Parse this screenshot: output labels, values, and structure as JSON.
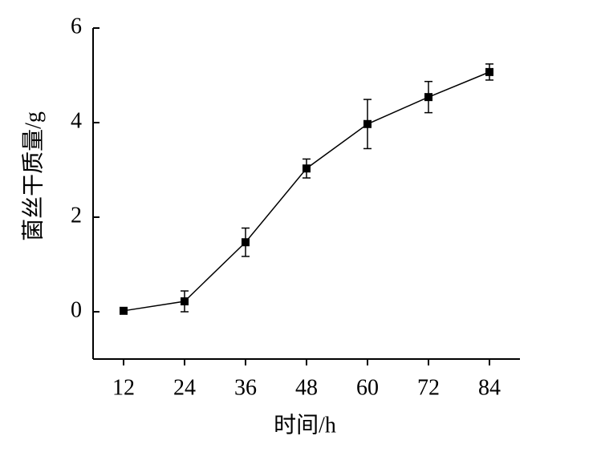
{
  "chart_data": {
    "type": "line",
    "x_label": "时间/h",
    "y_label": "菌丝干质量/g",
    "x": [
      12,
      24,
      36,
      48,
      60,
      72,
      84
    ],
    "series": [
      {
        "color": "#000000",
        "values": [
          0.02,
          0.22,
          1.47,
          3.03,
          3.97,
          4.54,
          5.07
        ],
        "errors": [
          0,
          0.22,
          0.3,
          0.2,
          0.52,
          0.33,
          0.17
        ]
      }
    ],
    "xlim": [
      6,
      90
    ],
    "xticks": [
      12,
      24,
      36,
      48,
      60,
      72,
      84
    ],
    "ylim": [
      -1,
      6
    ],
    "yticks": [
      0,
      2,
      4,
      6
    ]
  }
}
